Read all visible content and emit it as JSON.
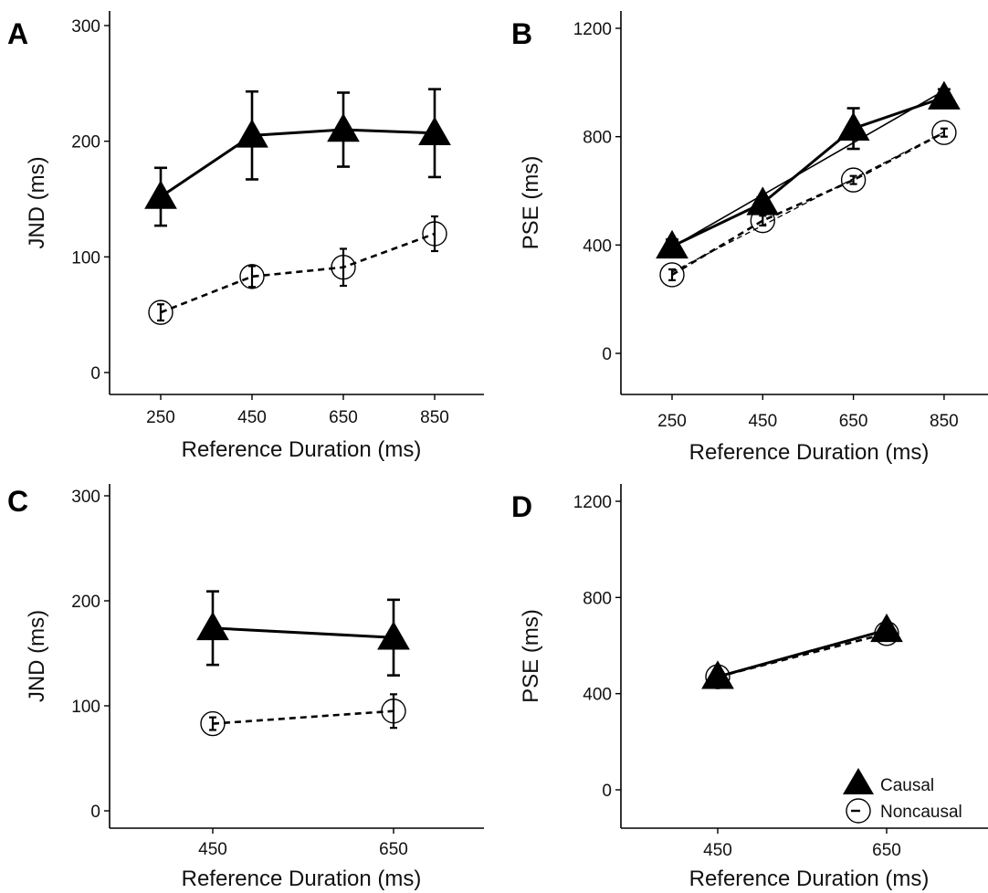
{
  "chart_data": [
    {
      "panel_label": "A",
      "type": "line",
      "xlabel": "Reference Duration (ms)",
      "ylabel": "JND (ms)",
      "categories": [
        "250",
        "450",
        "650",
        "850"
      ],
      "yticks": [
        "0",
        "100",
        "200",
        "300"
      ],
      "ylim": [
        0,
        300
      ],
      "series": [
        {
          "name": "Causal",
          "marker": "triangle",
          "line": "solid",
          "values": [
            152,
            205,
            210,
            207
          ],
          "err": [
            25,
            38,
            32,
            38
          ],
          "fit": false
        },
        {
          "name": "Noncausal",
          "marker": "circle",
          "line": "dashed",
          "values": [
            52,
            83,
            91,
            120
          ],
          "err": [
            7,
            9,
            16,
            15
          ],
          "fit": false
        }
      ]
    },
    {
      "panel_label": "B",
      "type": "line",
      "xlabel": "Reference Duration (ms)",
      "ylabel": "PSE (ms)",
      "categories": [
        "250",
        "450",
        "650",
        "850"
      ],
      "yticks": [
        "0",
        "400",
        "800",
        "1200"
      ],
      "ylim": [
        -160,
        1200
      ],
      "series": [
        {
          "name": "Causal",
          "marker": "triangle",
          "line": "solid",
          "values": [
            395,
            555,
            830,
            945
          ],
          "err": [
            25,
            20,
            75,
            30
          ],
          "fit": true
        },
        {
          "name": "Noncausal",
          "marker": "circle",
          "line": "dashed",
          "values": [
            290,
            490,
            640,
            815
          ],
          "err": [
            20,
            18,
            15,
            15
          ],
          "fit": true
        }
      ]
    },
    {
      "panel_label": "C",
      "type": "line",
      "xlabel": "Reference Duration (ms)",
      "ylabel": "JND (ms)",
      "categories": [
        "450",
        "650"
      ],
      "yticks": [
        "0",
        "100",
        "200",
        "300"
      ],
      "ylim": [
        0,
        300
      ],
      "series": [
        {
          "name": "Causal",
          "marker": "triangle",
          "line": "solid",
          "values": [
            174,
            165
          ],
          "err": [
            35,
            36
          ],
          "fit": false
        },
        {
          "name": "Noncausal",
          "marker": "circle",
          "line": "dashed",
          "values": [
            83,
            95
          ],
          "err": [
            6,
            16
          ],
          "fit": false
        }
      ]
    },
    {
      "panel_label": "D",
      "type": "line",
      "xlabel": "Reference Duration (ms)",
      "ylabel": "PSE (ms)",
      "categories": [
        "450",
        "650"
      ],
      "yticks": [
        "0",
        "400",
        "800",
        "1200"
      ],
      "ylim": [
        -160,
        1200
      ],
      "legend": {
        "position": "bottom-right",
        "entries": [
          "Causal",
          "Noncausal"
        ]
      },
      "series": [
        {
          "name": "Causal",
          "marker": "triangle",
          "line": "solid",
          "values": [
            470,
            665
          ],
          "err": [
            10,
            10
          ],
          "fit": false
        },
        {
          "name": "Noncausal",
          "marker": "circle",
          "line": "dashed",
          "values": [
            470,
            650
          ],
          "err": [
            10,
            10
          ],
          "fit": false
        }
      ]
    }
  ]
}
